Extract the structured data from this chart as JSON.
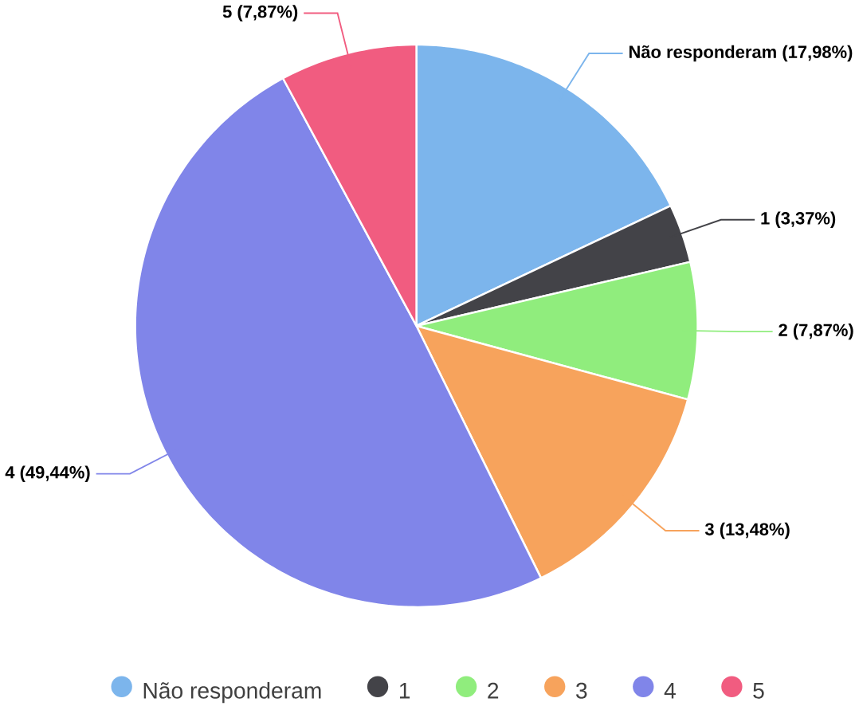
{
  "chart_data": {
    "type": "pie",
    "categories": [
      "Não responderam",
      "1",
      "2",
      "3",
      "4",
      "5"
    ],
    "values": [
      17.98,
      3.37,
      7.87,
      13.48,
      49.44,
      7.87
    ],
    "colors": [
      "#7cb5ec",
      "#434348",
      "#90ed7d",
      "#f7a35c",
      "#8085e9",
      "#f15c80"
    ],
    "value_labels": [
      "(17,98%)",
      "(3,37%)",
      "(7,87%)",
      "(13,48%)",
      "(49,44%)",
      "(7,87%)"
    ],
    "legend": "bottom"
  }
}
